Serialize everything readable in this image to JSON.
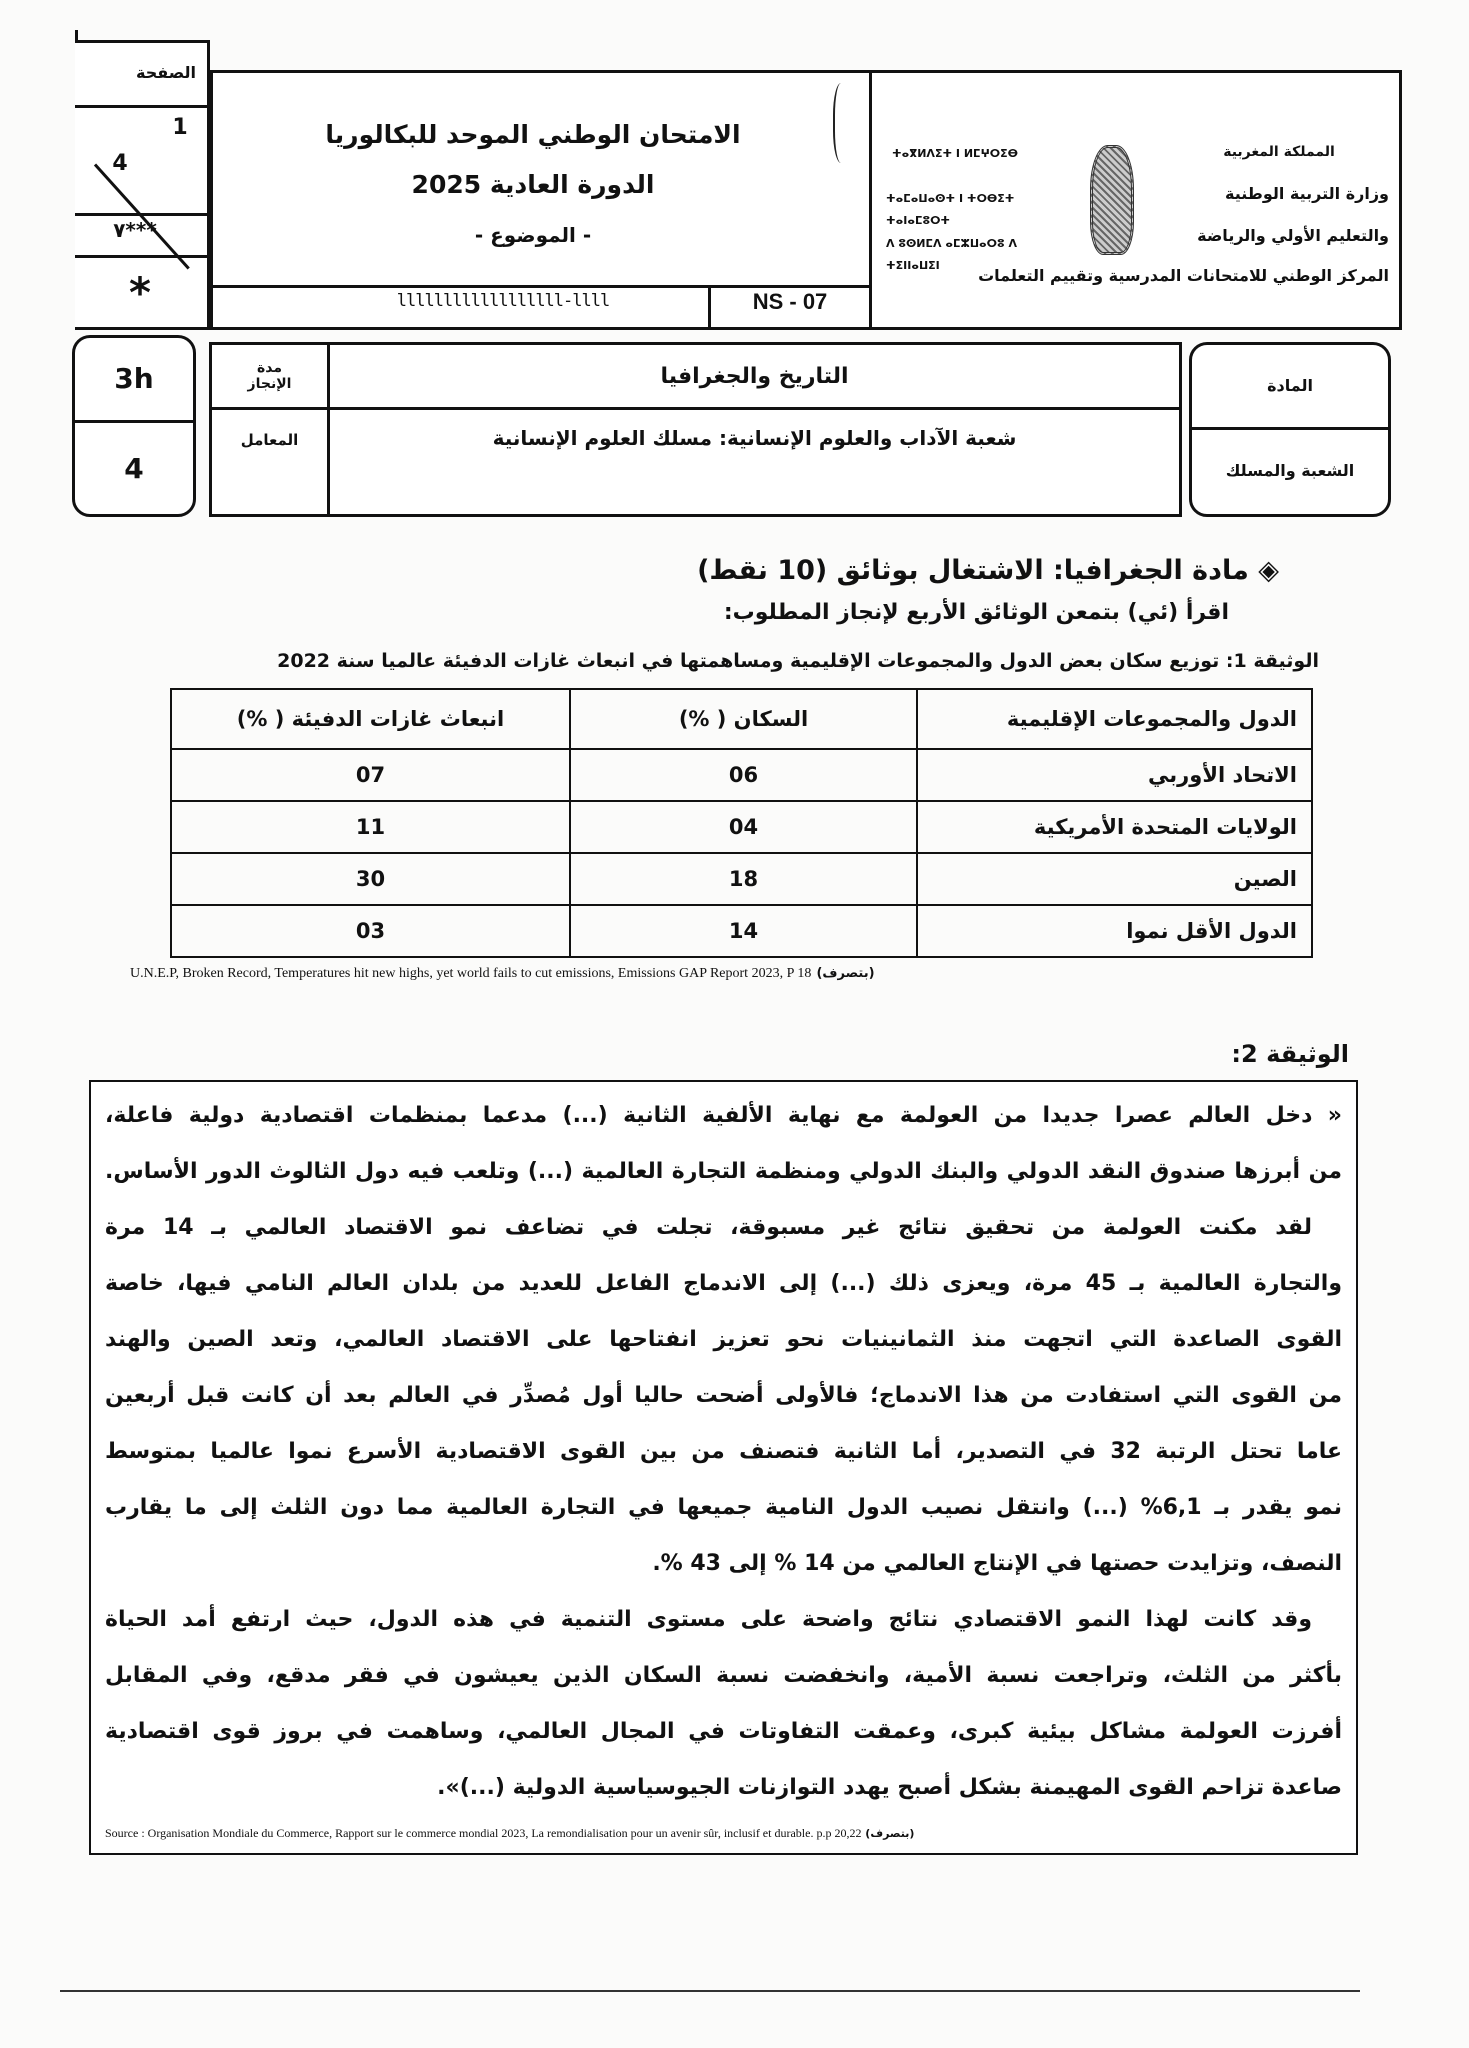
{
  "header": {
    "page_label": "الصفحة",
    "page_current": "1",
    "page_total": "4",
    "code_stars": "٧***",
    "star": "*",
    "exam_title": "الامتحان الوطني الموحد للبكالوريا",
    "session": "الدورة العادية 2025",
    "subject_label": "- الموضوع -",
    "barcode_text": "llllllllllllllllll-llll",
    "exam_code": "NS - 07",
    "ministry_ar": [
      "المملكة المغربية",
      "وزارة التربية الوطنية",
      "والتعليم الأولي والرياضة",
      "المركز الوطني للامتحانات المدرسية وتقييم التعلمات"
    ],
    "ministry_tifinagh": [
      "ⵜⴰⴳⵍⴷⵉⵜ ⵏ ⵍⵎⵖⵔⵉⴱ",
      "ⵜⴰⵎⴰⵡⴰⵙⵜ ⵏ ⵜⵔⴱⵉⵜ ⵜⴰⵏⴰⵎⵓⵔⵜ",
      "ⴷ ⵓⵙⵍⵎⴷ ⴰⵎⵣⵡⴰⵔⵓ ⴷ ⵜⵉⵏⵏⴰⵡⵉⵏ"
    ]
  },
  "subject_row": {
    "duration_label": "مدة الإنجاز",
    "duration": "3h",
    "subject_field_label": "المادة",
    "subject": "التاريخ والجغرافيا",
    "coef_label": "المعامل",
    "coef": "4",
    "stream_label": "الشعبة والمسلك",
    "stream": "شعبة الآداب والعلوم الإنسانية: مسلك العلوم الإنسانية"
  },
  "section": {
    "title": "◈ مادة الجغرافيا: الاشتغال بوثائق (10 نقط)",
    "instruction": "اقرأ (ئي) بتمعن الوثائق الأربع لإنجاز المطلوب:"
  },
  "doc1": {
    "caption": "الوثيقة 1: توزيع سكان بعض الدول والمجموعات الإقليمية ومساهمتها في انبعاث غازات الدفيئة عالميا سنة 2022",
    "columns": [
      "الدول والمجموعات الإقليمية",
      "السكان ( %)",
      "انبعاث غازات الدفيئة ( %)"
    ],
    "rows": [
      [
        "الاتحاد الأوربي",
        "06",
        "07"
      ],
      [
        "الولايات المتحدة الأمريكية",
        "04",
        "11"
      ],
      [
        "الصين",
        "18",
        "30"
      ],
      [
        "الدول الأقل نموا",
        "14",
        "03"
      ]
    ],
    "source": "U.N.E.P, Broken Record, Temperatures hit new highs, yet world fails to cut emissions, Emissions GAP Report 2023, P 18",
    "source_note": "(بتصرف)"
  },
  "doc2": {
    "label": "الوثيقة 2:",
    "lines": [
      "« دخل العالم عصرا جديدا من العولمة مع نهاية الألفية الثانية (...) مدعما بمنظمات اقتصادية دولية فاعلة،",
      "من أبرزها صندوق النقد الدولي والبنك الدولي ومنظمة التجارة العالمية (...) وتلعب فيه دول الثالوث الدور الأساس.",
      "لقد مكنت العولمة من تحقيق نتائج غير مسبوقة، تجلت في تضاعف نمو الاقتصاد العالمي بـ 14 مرة",
      "والتجارة العالمية بـ 45 مرة، ويعزى ذلك (...) إلى الاندماج الفاعل للعديد من بلدان العالم النامي فيها، خاصة",
      "القوى الصاعدة التي اتجهت منذ الثمانينيات نحو تعزيز انفتاحها على الاقتصاد العالمي، وتعد الصين والهند",
      "من القوى التي استفادت من هذا الاندماج؛ فالأولى أضحت حاليا أول مُصدِّر في العالم بعد أن كانت قبل أربعين",
      "عاما تحتل الرتبة 32 في التصدير، أما الثانية فتصنف من بين القوى الاقتصادية الأسرع نموا عالميا بمتوسط",
      "نمو يقدر بـ 6,1% (...) وانتقل نصيب الدول النامية جميعها في التجارة العالمية مما دون الثلث إلى ما يقارب",
      "النصف، وتزايدت حصتها في الإنتاج العالمي من 14 % إلى 43 %.",
      "وقد كانت لهذا النمو الاقتصادي نتائج واضحة على مستوى التنمية في هذه الدول، حيث ارتفع أمد الحياة",
      "بأكثر من الثلث، وتراجعت نسبة الأمية، وانخفضت نسبة السكان الذين يعيشون في فقر مدقع، وفي المقابل",
      "أفرزت العولمة مشاكل بيئية كبرى، وعمقت التفاوتات في المجال العالمي، وساهمت في بروز قوى اقتصادية",
      "صاعدة تزاحم القوى المهيمنة بشكل أصبح يهدد التوازنات الجيوسياسية الدولية (...)»."
    ],
    "source": "Source : Organisation Mondiale du Commerce, Rapport sur le commerce mondial 2023, La remondialisation pour un avenir sûr, inclusif et durable. p.p 20,22",
    "source_note": "(بتصرف)"
  }
}
